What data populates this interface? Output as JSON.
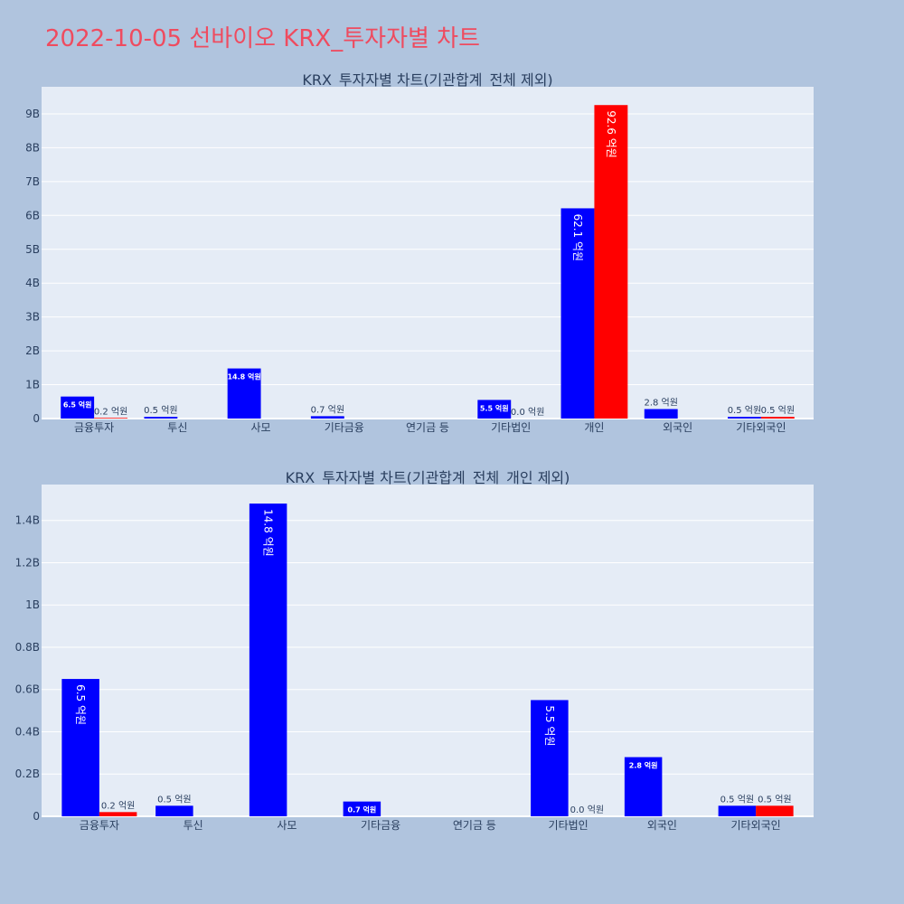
{
  "page_title": "2022-10-05 선바이오 KRX_투자자별 차트",
  "colors": {
    "background": "#b0c4de",
    "plot_bg": "#e5ecf6",
    "title": "#ef4b5f",
    "series_buy": "#0000ff",
    "series_sell": "#ff0000",
    "text": "#2a3f5f"
  },
  "chart_data": [
    {
      "type": "bar",
      "title": "KRX_투자자별 차트(기관합계_전체 제외)",
      "categories": [
        "금융투자",
        "투신",
        "사모",
        "기타금융",
        "연기금 등",
        "기타법인",
        "개인",
        "외국인",
        "기타외국인"
      ],
      "ylim": [
        0,
        9800000000
      ],
      "yticks": [
        0,
        1000000000,
        2000000000,
        3000000000,
        4000000000,
        5000000000,
        6000000000,
        7000000000,
        8000000000,
        9000000000
      ],
      "ytick_labels": [
        "0",
        "1B",
        "2B",
        "3B",
        "4B",
        "5B",
        "6B",
        "7B",
        "8B",
        "9B"
      ],
      "grid": true,
      "series": [
        {
          "color": "#0000ff",
          "values": [
            650000000,
            50000000,
            1480000000,
            70000000,
            null,
            550000000,
            6210000000,
            280000000,
            50000000
          ],
          "labels": [
            "6.5 억원",
            "0.5 억원",
            "14.8 억원",
            "0.7 억원",
            null,
            "5.5 억원",
            "62.1 억원",
            "2.8 억원",
            "0.5 억원"
          ]
        },
        {
          "color": "#ff0000",
          "values": [
            20000000,
            null,
            null,
            null,
            null,
            0,
            9260000000,
            null,
            50000000
          ],
          "labels": [
            "0.2 억원",
            null,
            null,
            null,
            null,
            "0.0 억원",
            "92.6 억원",
            null,
            "0.5 억원"
          ]
        }
      ]
    },
    {
      "type": "bar",
      "title": "KRX_투자자별 차트(기관합계_전체_개인 제외)",
      "categories": [
        "금융투자",
        "투신",
        "사모",
        "기타금융",
        "연기금 등",
        "기타법인",
        "외국인",
        "기타외국인"
      ],
      "ylim": [
        0,
        1570000000
      ],
      "yticks": [
        0,
        200000000,
        400000000,
        600000000,
        800000000,
        1000000000,
        1200000000,
        1400000000
      ],
      "ytick_labels": [
        "0",
        "0.2B",
        "0.4B",
        "0.6B",
        "0.8B",
        "1B",
        "1.2B",
        "1.4B"
      ],
      "grid": true,
      "series": [
        {
          "color": "#0000ff",
          "values": [
            650000000,
            50000000,
            1480000000,
            70000000,
            null,
            550000000,
            280000000,
            50000000
          ],
          "labels": [
            "6.5 억원",
            "0.5 억원",
            "14.8 억원",
            "0.7 억원",
            null,
            "5.5 억원",
            "2.8 억원",
            "0.5 억원"
          ]
        },
        {
          "color": "#ff0000",
          "values": [
            20000000,
            null,
            null,
            null,
            null,
            0,
            null,
            50000000
          ],
          "labels": [
            "0.2 억원",
            null,
            null,
            null,
            null,
            "0.0 억원",
            null,
            "0.5 억원"
          ]
        }
      ]
    }
  ]
}
